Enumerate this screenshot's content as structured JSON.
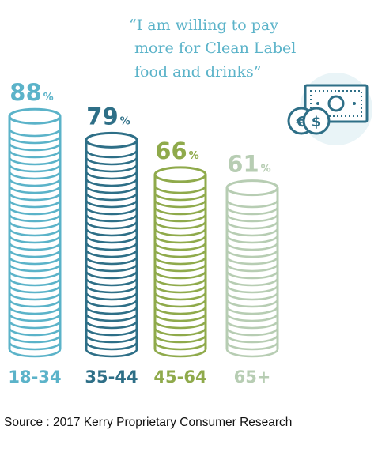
{
  "quote": {
    "lines": [
      "“I am willing to pay",
      "more for Clean Label",
      "food and drinks”"
    ]
  },
  "icon": {
    "name": "money-bill-coins-icon",
    "coins": [
      "€",
      "$"
    ]
  },
  "chart_data": {
    "type": "bar",
    "categories": [
      "18-34",
      "35-44",
      "45-64",
      "65+"
    ],
    "values": [
      88,
      79,
      66,
      61
    ],
    "value_suffix": "%",
    "title": "“I am willing to pay more for Clean Label food and drinks”",
    "ylim": [
      0,
      100
    ],
    "colors": [
      "#5bb3c9",
      "#2e6f87",
      "#8faa4b",
      "#b7cdb3"
    ],
    "grid": false
  },
  "source": "Source : 2017 Kerry Proprietary Consumer Research"
}
